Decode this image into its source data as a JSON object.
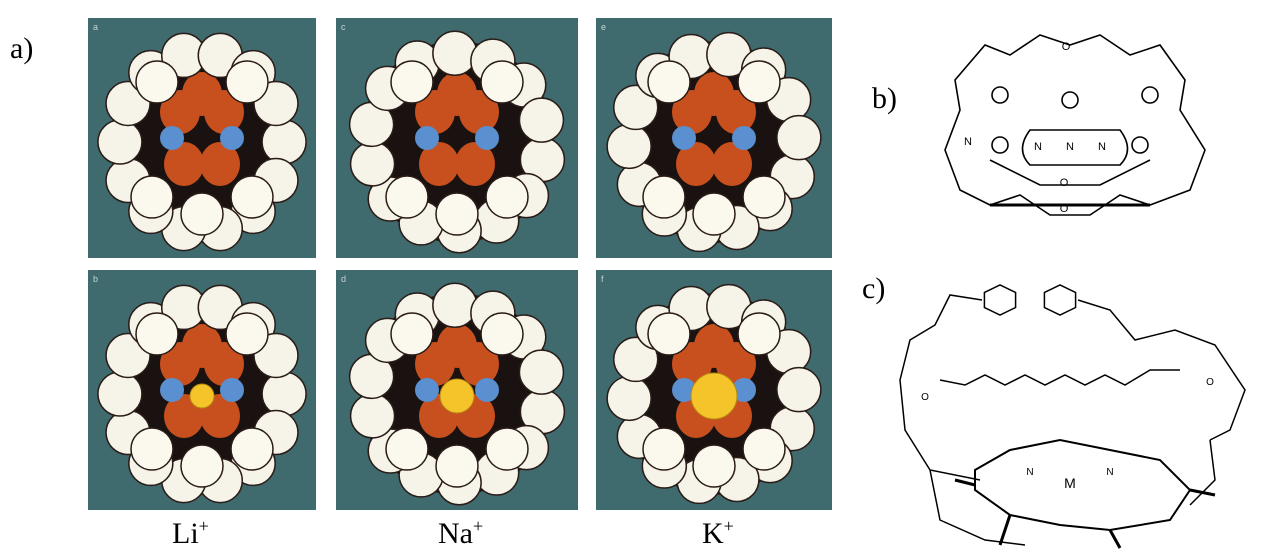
{
  "panel_a": {
    "label": "a)",
    "photos": [
      {
        "letter": "a"
      },
      {
        "letter": "c"
      },
      {
        "letter": "e"
      },
      {
        "letter": "b"
      },
      {
        "letter": "d"
      },
      {
        "letter": "f"
      }
    ],
    "ions": [
      {
        "symbol": "Li",
        "charge": "+"
      },
      {
        "symbol": "Na",
        "charge": "+"
      },
      {
        "symbol": "K",
        "charge": "+"
      }
    ]
  },
  "panel_b": {
    "label": "b)",
    "atoms": [
      "O",
      "O",
      "O",
      "N",
      "N",
      "N",
      "N"
    ]
  },
  "panel_c": {
    "label": "c)",
    "atoms": [
      "M",
      "N",
      "N",
      "O",
      "O"
    ]
  }
}
